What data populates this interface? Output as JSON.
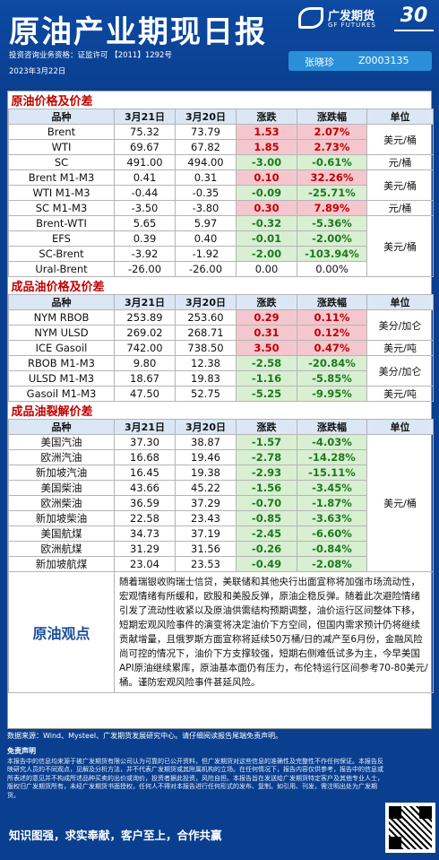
{
  "header": {
    "title": "原油产业期现日报",
    "logo_name": "广发期货",
    "logo_en": "GF FUTURES",
    "badge": "30",
    "license": "投资咨询业务资格：证监许可 【2011】1292号",
    "date": "2023年3月22日",
    "analyst_name": "张晓珍",
    "analyst_code": "Z0003135"
  },
  "crude": {
    "section_title": "原油价格及价差",
    "headers": [
      "品种",
      "3月21日",
      "3月20日",
      "涨跌",
      "涨跌幅",
      "单位"
    ],
    "rows": [
      [
        "Brent",
        "75.32",
        "73.79",
        "1.53",
        "2.07%"
      ],
      [
        "WTI",
        "69.67",
        "67.82",
        "1.85",
        "2.73%"
      ],
      [
        "SC",
        "491.00",
        "494.00",
        "-3.00",
        "-0.61%"
      ],
      [
        "Brent  M1-M3",
        "0.41",
        "0.31",
        "0.10",
        "32.26%"
      ],
      [
        "WTI  M1-M3",
        "-0.44",
        "-0.35",
        "-0.09",
        "-25.71%"
      ],
      [
        "SC  M1-M3",
        "-3.50",
        "-3.80",
        "0.30",
        "7.89%"
      ],
      [
        "Brent-WTI",
        "5.65",
        "5.97",
        "-0.32",
        "-5.36%"
      ],
      [
        "EFS",
        "0.39",
        "0.40",
        "-0.01",
        "-2.00%"
      ],
      [
        "SC-Brent",
        "-3.92",
        "-1.92",
        "-2.00",
        "-103.94%"
      ],
      [
        "Ural-Brent",
        "-26.00",
        "-26.00",
        "0.00",
        "0.00%"
      ]
    ],
    "units": [
      "美元/桶",
      "元/桶",
      "美元/桶",
      "元/桶",
      "美元/桶"
    ]
  },
  "products": {
    "section_title": "成品油价格及价差",
    "headers": [
      "品种",
      "3月21日",
      "3月20日",
      "涨跌",
      "涨跌幅",
      "单位"
    ],
    "rows": [
      [
        "NYM RBOB",
        "253.89",
        "253.60",
        "0.29",
        "0.11%"
      ],
      [
        "NYM ULSD",
        "269.02",
        "268.71",
        "0.31",
        "0.12%"
      ],
      [
        "ICE Gasoil",
        "742.00",
        "738.50",
        "3.50",
        "0.47%"
      ],
      [
        "RBOB  M1-M3",
        "9.80",
        "12.38",
        "-2.58",
        "-20.84%"
      ],
      [
        "ULSD  M1-M3",
        "18.67",
        "19.83",
        "-1.16",
        "-5.85%"
      ],
      [
        "Gasoil  M1-M3",
        "47.50",
        "52.75",
        "-5.25",
        "-9.95%"
      ]
    ],
    "units": [
      "美分/加仑",
      "美元/吨",
      "美分/加仑",
      "美元/吨"
    ]
  },
  "cracks": {
    "section_title": "成品油裂解价差",
    "headers": [
      "品种",
      "3月21日",
      "3月20日",
      "涨跌",
      "涨跌幅",
      "单位"
    ],
    "rows": [
      [
        "美国汽油",
        "37.30",
        "38.87",
        "-1.57",
        "-4.03%"
      ],
      [
        "欧洲汽油",
        "16.68",
        "19.46",
        "-2.78",
        "-14.28%"
      ],
      [
        "新加坡汽油",
        "16.45",
        "19.38",
        "-2.93",
        "-15.11%"
      ],
      [
        "美国柴油",
        "43.66",
        "45.22",
        "-1.56",
        "-3.45%"
      ],
      [
        "欧洲柴油",
        "36.59",
        "37.29",
        "-0.70",
        "-1.87%"
      ],
      [
        "新加坡柴油",
        "22.58",
        "23.43",
        "-0.85",
        "-3.63%"
      ],
      [
        "美国航煤",
        "34.73",
        "37.19",
        "-2.45",
        "-6.60%"
      ],
      [
        "欧洲航煤",
        "31.29",
        "31.56",
        "-0.26",
        "-0.84%"
      ],
      [
        "新加坡航煤",
        "23.04",
        "23.53",
        "-0.49",
        "-2.08%"
      ]
    ],
    "unit": "美元/桶"
  },
  "view": {
    "label": "原油观点",
    "text": "随着瑞银收购瑞士信贷，美联储和其他央行出面宣称将加强市场流动性，宏观情绪有所缓和，欧股和美股反弹，原油企稳反弹。随着此次避险情绪引发了流动性收紧以及原油供需结构预期调整，油价运行区间整体下移，短期宏观风险事件的演变将决定油价下方空间，但国内需求预计仍将继续贡献增量，且俄罗斯方面宣称将延续50万桶/日的减产至6月份，金融风险尚可控的情况下，油价下方支撑较强，短期右侧难低试多为主，今早美国API原油继续累库，原油基本面仍有压力，布伦特运行区间参考70-80美元/桶。谨防宏观风险事件甚延风险。"
  },
  "footer": {
    "source": "数据来源：Wind、Mysteel、广发期货发展研究中心。请仔细阅读报告尾端免责声明。",
    "disclaimer_title": "免责声明",
    "disclaimer": "本报告中的信息均来源于被广发期货有限公司认为可靠的已公开资料，但广发期货对这些信息的准确性及完整性不作任何保证。本报告反映研究人员的不同观点，见解及分析方法，并不代表广发期货或其附属机构的立场。在任何情况下，报告内容仅供参考，报告中的信息或所表述的意见并不构成所述品种买卖的出价或询价，投资者据此投资，风险自担。本报告旨在发送给广发期货特定客户及其他专业人士，版权归广发期货所有，未经广发期货书面授权，任何人不得对本报告进行任何形式的发布、复制。如引用、刊发，需注明出处为广发期货。",
    "slogan": "知识图强，求实奉献，客户至上，合作共赢"
  }
}
